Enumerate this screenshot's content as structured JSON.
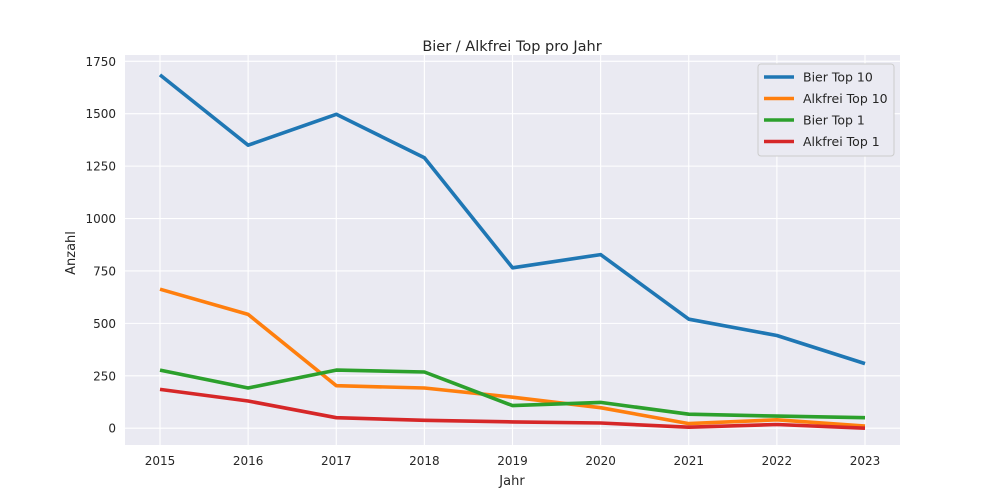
{
  "chart_data": {
    "type": "line",
    "title": "Bier / Alkfrei Top pro Jahr",
    "xlabel": "Jahr",
    "ylabel": "Anzahl",
    "x": [
      "2015",
      "2016",
      "2017",
      "2018",
      "2019",
      "2020",
      "2021",
      "2022",
      "2023"
    ],
    "yticks": [
      "0",
      "250",
      "500",
      "750",
      "1000",
      "1250",
      "1500",
      "1750"
    ],
    "ylim": [
      -80,
      1780
    ],
    "grid": true,
    "legend_position": "top-right",
    "series": [
      {
        "name": "Bier Top 10",
        "color": "#1f77b4",
        "values": [
          1685,
          1350,
          1497,
          1290,
          765,
          828,
          520,
          442,
          308
        ]
      },
      {
        "name": "Alkfrei Top 10",
        "color": "#ff7f0e",
        "values": [
          663,
          543,
          203,
          192,
          148,
          98,
          22,
          40,
          10
        ]
      },
      {
        "name": "Bier Top 1",
        "color": "#2ca02c",
        "values": [
          277,
          192,
          277,
          268,
          108,
          123,
          67,
          58,
          50
        ]
      },
      {
        "name": "Alkfrei Top 1",
        "color": "#d62728",
        "values": [
          185,
          130,
          50,
          38,
          30,
          25,
          5,
          18,
          0
        ]
      }
    ]
  }
}
